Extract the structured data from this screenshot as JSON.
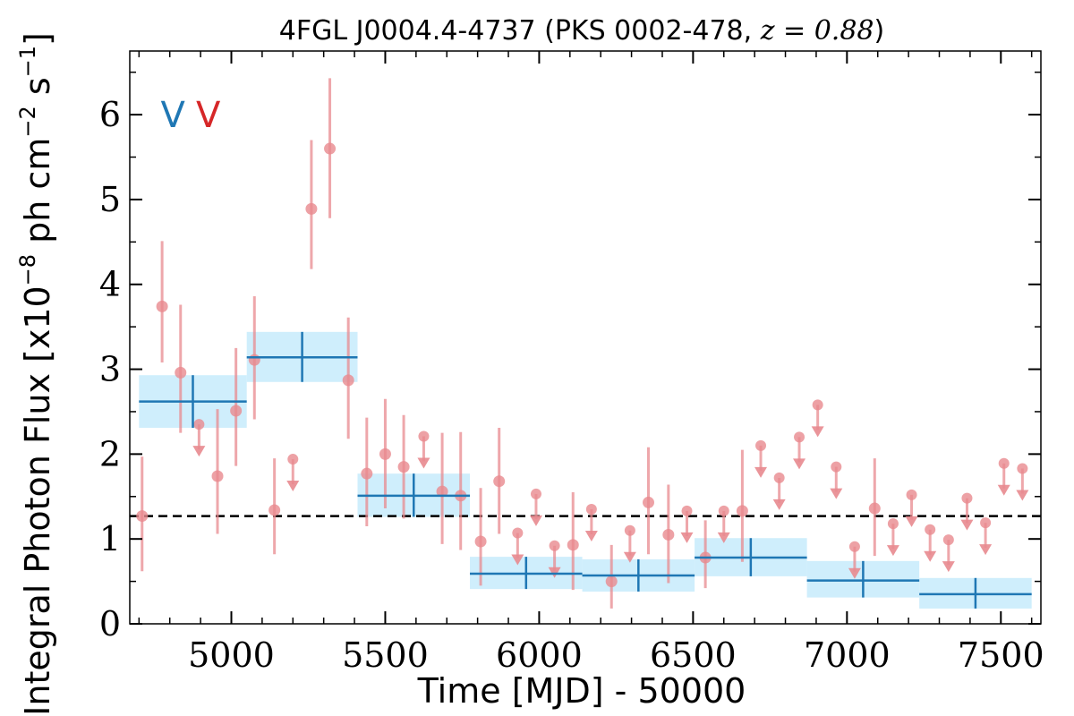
{
  "chart_data": {
    "type": "scatter",
    "title": "4FGL J0004.4-4737 (PKS 0002-478, z = 0.88)",
    "title_parts": {
      "main": "4FGL J0004.4-4737 (PKS 0002-478, ",
      "math": "z = 0.88",
      "close": ")"
    },
    "xlabel": "Time [MJD] - 50000",
    "ylabel": "Integral Photon Flux [x10",
    "ylabel_exp1": "−8",
    "ylabel_mid": " ph cm",
    "ylabel_exp2": "−2",
    "ylabel_mid2": " s",
    "ylabel_exp3": "−1",
    "ylabel_end": "]",
    "xlim": [
      4670,
      7630
    ],
    "ylim": [
      0,
      6.75
    ],
    "xticks": [
      5000,
      5500,
      6000,
      6500,
      7000,
      7500
    ],
    "xtick_labels": [
      "5000",
      "5500",
      "6000",
      "6500",
      "7000",
      "7500"
    ],
    "yticks": [
      0,
      1,
      2,
      3,
      4,
      5,
      6
    ],
    "ytick_labels": [
      "0",
      "1",
      "2",
      "3",
      "4",
      "5",
      "6"
    ],
    "grid": false,
    "mean_flux": 1.27,
    "markers": [
      {
        "text": "V",
        "x": 4810,
        "y": 6.0,
        "color": "#1f77b4"
      },
      {
        "text": "V",
        "x": 4925,
        "y": 6.0,
        "color": "#d62728"
      }
    ],
    "colors": {
      "short_bins": "#e88a8f",
      "long_bins": "#1f77b4",
      "long_box": "#c7ebfb",
      "mean_line": "#000000"
    },
    "series": [
      {
        "role": "short_bins_detections",
        "points": [
          {
            "x": 4710,
            "y": 1.27,
            "ylo": 0.62,
            "yhi": 1.97
          },
          {
            "x": 4775,
            "y": 3.74,
            "ylo": 3.08,
            "yhi": 4.51
          },
          {
            "x": 4835,
            "y": 2.96,
            "ylo": 2.25,
            "yhi": 3.76
          },
          {
            "x": 4955,
            "y": 1.74,
            "ylo": 1.06,
            "yhi": 2.53
          },
          {
            "x": 5015,
            "y": 2.51,
            "ylo": 1.86,
            "yhi": 3.25
          },
          {
            "x": 5075,
            "y": 3.11,
            "ylo": 2.41,
            "yhi": 3.86
          },
          {
            "x": 5140,
            "y": 1.34,
            "ylo": 0.82,
            "yhi": 1.95
          },
          {
            "x": 5260,
            "y": 4.89,
            "ylo": 4.18,
            "yhi": 5.7
          },
          {
            "x": 5320,
            "y": 5.6,
            "ylo": 4.78,
            "yhi": 6.43
          },
          {
            "x": 5380,
            "y": 2.87,
            "ylo": 2.18,
            "yhi": 3.61
          },
          {
            "x": 5440,
            "y": 1.77,
            "ylo": 1.15,
            "yhi": 2.43
          },
          {
            "x": 5500,
            "y": 2.0,
            "ylo": 1.36,
            "yhi": 2.65
          },
          {
            "x": 5560,
            "y": 1.85,
            "ylo": 1.24,
            "yhi": 2.46
          },
          {
            "x": 5685,
            "y": 1.56,
            "ylo": 0.94,
            "yhi": 2.25
          },
          {
            "x": 5745,
            "y": 1.51,
            "ylo": 0.87,
            "yhi": 2.26
          },
          {
            "x": 5810,
            "y": 0.97,
            "ylo": 0.45,
            "yhi": 1.6
          },
          {
            "x": 5870,
            "y": 1.68,
            "ylo": 1.06,
            "yhi": 2.31
          },
          {
            "x": 6110,
            "y": 0.93,
            "ylo": 0.4,
            "yhi": 1.55
          },
          {
            "x": 6235,
            "y": 0.5,
            "ylo": 0.18,
            "yhi": 0.93
          },
          {
            "x": 6355,
            "y": 1.43,
            "ylo": 0.82,
            "yhi": 2.08
          },
          {
            "x": 6420,
            "y": 1.05,
            "ylo": 0.48,
            "yhi": 1.64
          },
          {
            "x": 6540,
            "y": 0.78,
            "ylo": 0.42,
            "yhi": 1.22
          },
          {
            "x": 6660,
            "y": 1.33,
            "ylo": 0.73,
            "yhi": 2.05
          },
          {
            "x": 7090,
            "y": 1.36,
            "ylo": 0.8,
            "yhi": 1.95
          }
        ]
      },
      {
        "role": "short_bins_upper_limits",
        "points": [
          {
            "x": 4895,
            "y": 2.35
          },
          {
            "x": 5200,
            "y": 1.94
          },
          {
            "x": 5625,
            "y": 2.21
          },
          {
            "x": 5930,
            "y": 1.07
          },
          {
            "x": 5990,
            "y": 1.53
          },
          {
            "x": 6050,
            "y": 0.92
          },
          {
            "x": 6170,
            "y": 1.35
          },
          {
            "x": 6295,
            "y": 1.1
          },
          {
            "x": 6480,
            "y": 1.33
          },
          {
            "x": 6600,
            "y": 1.33
          },
          {
            "x": 6720,
            "y": 2.1
          },
          {
            "x": 6780,
            "y": 1.72
          },
          {
            "x": 6845,
            "y": 2.2
          },
          {
            "x": 6905,
            "y": 2.58
          },
          {
            "x": 6965,
            "y": 1.85
          },
          {
            "x": 7025,
            "y": 0.91
          },
          {
            "x": 7150,
            "y": 1.18
          },
          {
            "x": 7210,
            "y": 1.52
          },
          {
            "x": 7270,
            "y": 1.11
          },
          {
            "x": 7330,
            "y": 0.99
          },
          {
            "x": 7390,
            "y": 1.48
          },
          {
            "x": 7450,
            "y": 1.19
          },
          {
            "x": 7510,
            "y": 1.89
          },
          {
            "x": 7570,
            "y": 1.83
          }
        ]
      },
      {
        "role": "long_bins",
        "bins": [
          {
            "x0": 4700,
            "x1": 5050,
            "y": 2.62,
            "ylo": 2.31,
            "yhi": 2.93
          },
          {
            "x0": 5050,
            "x1": 5410,
            "y": 3.14,
            "ylo": 2.85,
            "yhi": 3.44
          },
          {
            "x0": 5410,
            "x1": 5775,
            "y": 1.51,
            "ylo": 1.26,
            "yhi": 1.77
          },
          {
            "x0": 5775,
            "x1": 6140,
            "y": 0.59,
            "ylo": 0.41,
            "yhi": 0.79
          },
          {
            "x0": 6140,
            "x1": 6505,
            "y": 0.57,
            "ylo": 0.38,
            "yhi": 0.76
          },
          {
            "x0": 6505,
            "x1": 6870,
            "y": 0.78,
            "ylo": 0.56,
            "yhi": 1.01
          },
          {
            "x0": 6870,
            "x1": 7235,
            "y": 0.51,
            "ylo": 0.31,
            "yhi": 0.74
          },
          {
            "x0": 7235,
            "x1": 7600,
            "y": 0.35,
            "ylo": 0.18,
            "yhi": 0.54
          }
        ]
      }
    ]
  }
}
